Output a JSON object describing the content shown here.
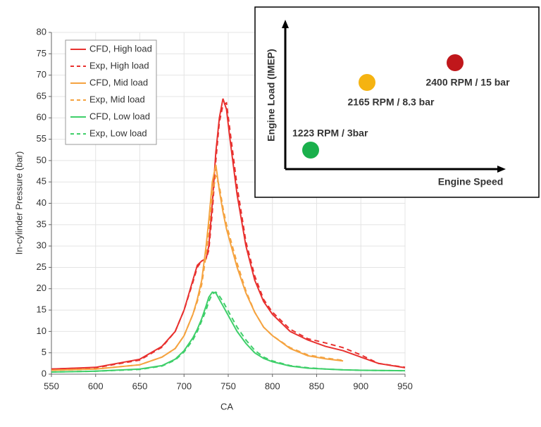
{
  "chart_data": {
    "type": "line",
    "x_label": "CA",
    "y_label": "In-cylinder Pressure (bar)",
    "x": [
      550,
      600,
      650,
      675,
      690,
      700,
      710,
      715,
      720,
      725,
      728,
      732,
      736,
      740,
      744,
      748,
      752,
      760,
      770,
      780,
      790,
      800,
      820,
      840,
      860,
      880,
      900,
      920,
      950
    ],
    "series": [
      {
        "name": "CFD, High load",
        "color": "#e8312f",
        "dashed": false,
        "values": [
          1.2,
          1.6,
          3.5,
          6.5,
          10,
          15,
          22,
          25.5,
          26.5,
          27,
          30,
          40,
          52,
          60,
          64.5,
          62,
          55,
          42,
          30,
          22,
          17,
          14,
          10,
          8,
          6.5,
          5.5,
          4,
          2.5,
          1.5
        ]
      },
      {
        "name": "Exp, High load",
        "color": "#e8312f",
        "dashed": true,
        "values": [
          1.2,
          1.5,
          3.3,
          6.3,
          10,
          15,
          21.5,
          25,
          26.5,
          27,
          29,
          38,
          50,
          59,
          63,
          63.5,
          57,
          44,
          31,
          23,
          17.5,
          14.5,
          10.5,
          8.3,
          7.3,
          6.2,
          4.5,
          2.5,
          1.6
        ]
      },
      {
        "name": "CFD, Mid load",
        "color": "#f5a340",
        "dashed": false,
        "values": [
          0.9,
          1.2,
          2.2,
          4,
          6,
          9,
          14,
          17.5,
          22,
          30,
          36,
          45,
          49,
          43,
          38,
          34,
          31,
          25,
          19,
          14.5,
          11,
          9,
          6,
          4.3,
          3.6,
          3.1,
          null,
          null,
          null
        ]
      },
      {
        "name": "Exp, Mid load",
        "color": "#f5a340",
        "dashed": true,
        "values": [
          0.9,
          1.2,
          2.2,
          4,
          6,
          9,
          14,
          17,
          21,
          28,
          34,
          42,
          46.5,
          44,
          39,
          35,
          32,
          26,
          19.5,
          14.5,
          11,
          9,
          6.2,
          4.5,
          3.8,
          3.2,
          null,
          null,
          null
        ]
      },
      {
        "name": "CFD, Low load",
        "color": "#3fcf6a",
        "dashed": false,
        "values": [
          0.5,
          0.7,
          1.2,
          2,
          3.5,
          5.5,
          8.5,
          10.5,
          13,
          16,
          18,
          19.2,
          19,
          17.5,
          16,
          14.5,
          13,
          10,
          7.2,
          5,
          3.7,
          2.9,
          1.9,
          1.4,
          1.2,
          1,
          0.9,
          0.85,
          0.8
        ]
      },
      {
        "name": "Exp, Low load",
        "color": "#3fcf6a",
        "dashed": true,
        "values": [
          0.5,
          0.7,
          1.1,
          1.9,
          3.3,
          5.2,
          8,
          10,
          12.5,
          15,
          17,
          18.8,
          19.2,
          18.3,
          17,
          15.5,
          14,
          11,
          8,
          5.6,
          4,
          3.1,
          2,
          1.5,
          1.2,
          1,
          0.9,
          0.85,
          0.8
        ]
      }
    ],
    "xlim": [
      550,
      950
    ],
    "xticks": [
      550,
      600,
      650,
      700,
      750,
      800,
      850,
      900,
      950
    ],
    "ylim": [
      0,
      80
    ],
    "yticks": [
      0,
      5,
      10,
      15,
      20,
      25,
      30,
      35,
      40,
      45,
      50,
      55,
      60,
      65,
      70,
      75,
      80
    ],
    "grid": true,
    "legend": "upper-left"
  },
  "inset": {
    "y_label": "Engine Load (IMEP)",
    "x_label": "Engine Speed",
    "points": [
      {
        "label": "1223 RPM / 3bar",
        "color": "#1ab04c"
      },
      {
        "label": "2165 RPM / 8.3 bar",
        "color": "#f5b311"
      },
      {
        "label": "2400 RPM / 15 bar",
        "color": "#c0171b"
      }
    ]
  }
}
